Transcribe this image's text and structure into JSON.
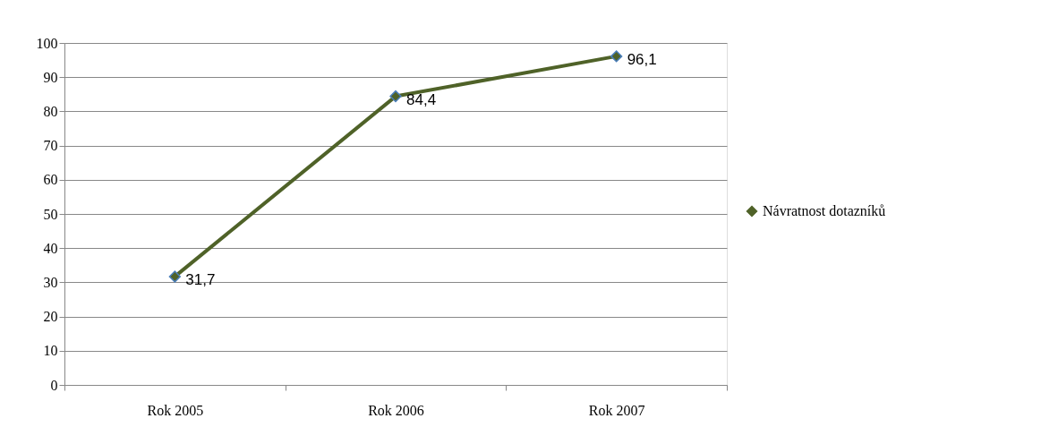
{
  "chart_data": {
    "type": "line",
    "categories": [
      "Rok 2005",
      "Rok 2006",
      "Rok 2007"
    ],
    "series": [
      {
        "name": "Návratnost dotazníků",
        "color": "#4f6228",
        "values": [
          31.7,
          84.4,
          96.1
        ],
        "value_labels": [
          "31,7",
          "84,4",
          "96,1"
        ]
      }
    ],
    "ylim": [
      0,
      100
    ],
    "yticks": [
      0,
      10,
      20,
      30,
      40,
      50,
      60,
      70,
      80,
      90,
      100
    ],
    "grid": "y",
    "legend": "right",
    "marker": "diamond",
    "line_style": "solid"
  }
}
